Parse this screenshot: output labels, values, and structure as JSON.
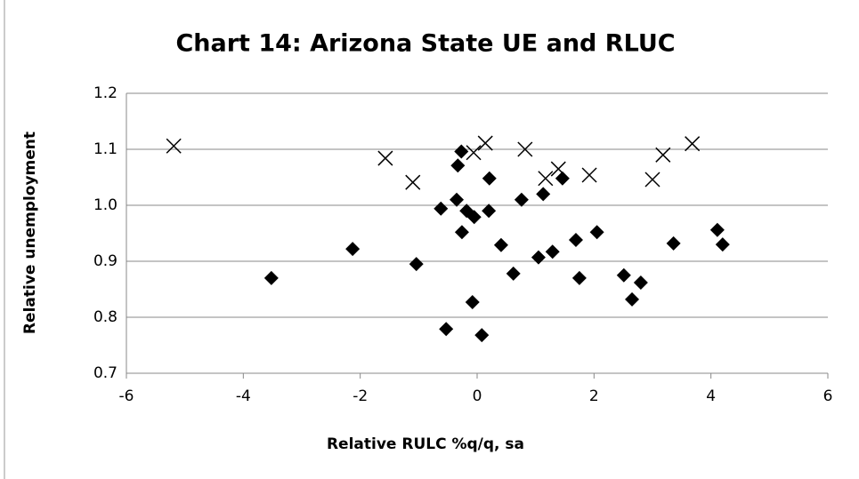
{
  "chart_data": {
    "type": "scatter",
    "title": "Chart 14: Arizona State UE and RLUC",
    "x_label": "Relative RULC %q/q, sa",
    "y_label": "Relative unemployment",
    "xlim": [
      -6,
      6
    ],
    "xticks": [
      -6,
      -4,
      -2,
      0,
      2,
      4,
      6
    ],
    "ylim": [
      0.7,
      1.2
    ],
    "yticks": [
      0.7,
      0.8,
      0.9,
      {
        "value": 1.0,
        "label": "1.0"
      },
      1.1,
      1.2
    ],
    "grid": true,
    "series": [
      {
        "marker": "diamond",
        "color": "#000000",
        "x": [
          -3.52,
          -2.13,
          -1.04,
          -0.53,
          -0.62,
          -0.33,
          -0.27,
          -0.35,
          -0.26,
          -0.18,
          -0.05,
          -0.08,
          0.08,
          0.21,
          0.2,
          0.41,
          0.62,
          0.76,
          1.05,
          1.13,
          1.29,
          1.46,
          1.69,
          1.75,
          2.05,
          2.51,
          2.65,
          2.8,
          3.36,
          4.11,
          4.2
        ],
        "values": [
          0.87,
          0.922,
          0.895,
          0.779,
          0.994,
          1.071,
          1.096,
          1.01,
          0.952,
          0.99,
          0.979,
          0.827,
          0.768,
          1.048,
          0.99,
          0.929,
          0.878,
          1.01,
          0.907,
          1.02,
          0.917,
          1.048,
          0.938,
          0.87,
          0.952,
          0.875,
          0.832,
          0.862,
          0.932,
          0.956,
          0.93
        ]
      },
      {
        "marker": "x",
        "color": "#000000",
        "x": [
          -5.19,
          -1.57,
          -1.1,
          -0.06,
          0.14,
          0.82,
          1.17,
          1.39,
          1.92,
          3.0,
          3.18,
          3.68
        ],
        "values": [
          1.106,
          1.084,
          1.041,
          1.094,
          1.111,
          1.1,
          1.048,
          1.065,
          1.054,
          1.046,
          1.09,
          1.11
        ]
      }
    ]
  }
}
